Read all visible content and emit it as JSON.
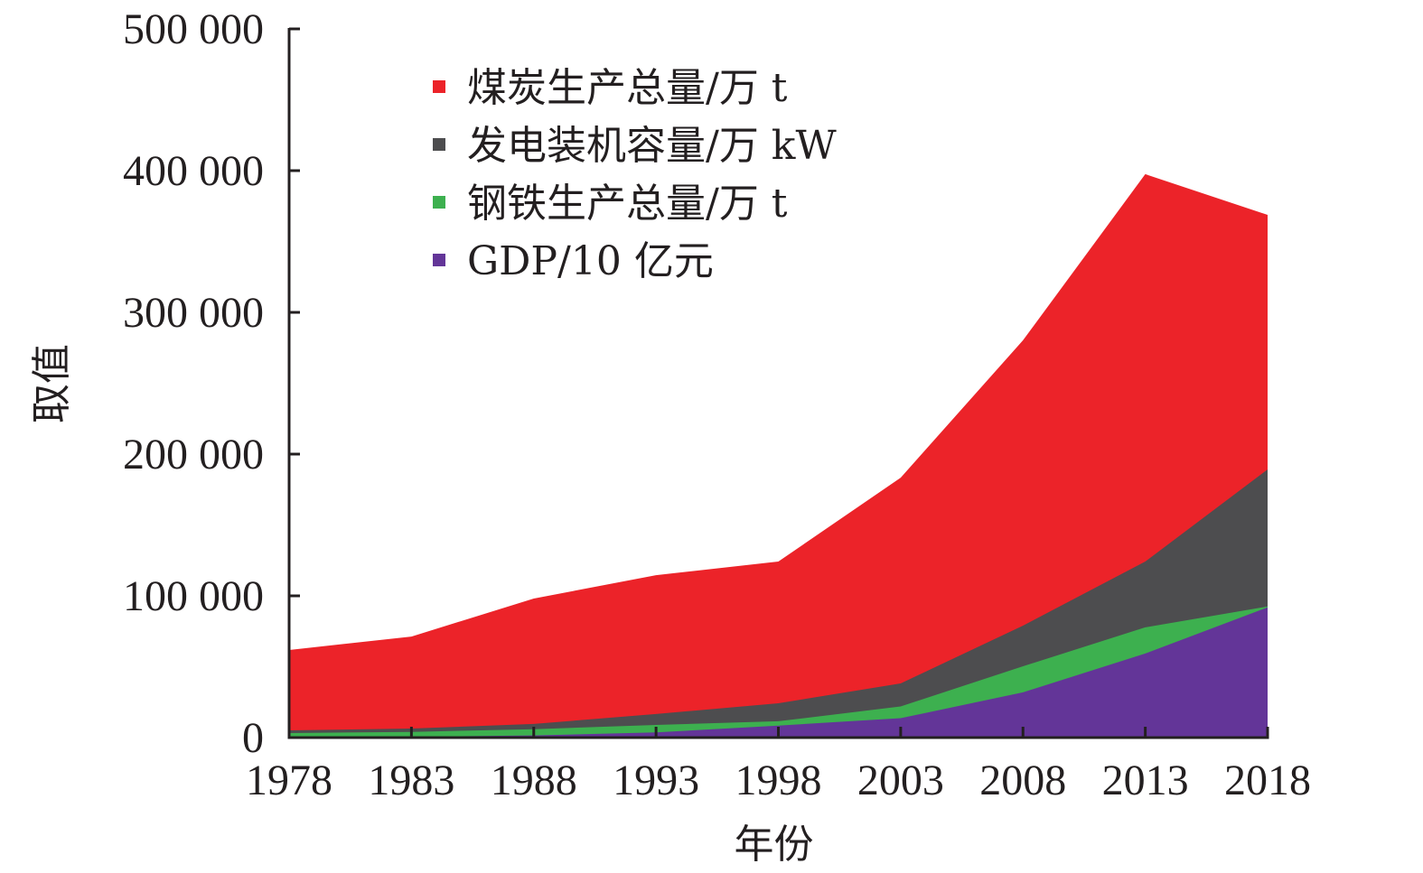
{
  "chart_data": {
    "type": "area",
    "stacked": false,
    "title": "",
    "xlabel": "年份",
    "ylabel": "取值",
    "categories": [
      "1978",
      "1983",
      "1988",
      "1993",
      "1998",
      "2003",
      "2008",
      "2013",
      "2018"
    ],
    "ylim": [
      0,
      500000
    ],
    "yticks": [
      0,
      100000,
      200000,
      300000,
      400000,
      500000
    ],
    "ytick_labels": [
      "0",
      "100 000",
      "200 000",
      "300 000",
      "400 000",
      "500 000"
    ],
    "grid": false,
    "legend_position": "top-left",
    "series": [
      {
        "name": "煤炭生产总量/万 t",
        "color": "#ec2329",
        "values": [
          61800,
          71300,
          98100,
          114600,
          124200,
          183400,
          280300,
          397500,
          368800
        ]
      },
      {
        "name": "发电装机容量/万 kW",
        "color": "#4d4d4f",
        "values": [
          5100,
          6400,
          9600,
          16600,
          24200,
          38200,
          79000,
          124200,
          189200
        ]
      },
      {
        "name": "钢铁生产总量/万 t",
        "color": "#3db04f",
        "values": [
          3200,
          4000,
          5900,
          8900,
          11500,
          22000,
          50300,
          77800,
          92500
        ]
      },
      {
        "name": "GDP/10 亿元",
        "color": "#633598",
        "values": [
          400,
          600,
          1500,
          3600,
          8500,
          13700,
          31900,
          59300,
          91900
        ]
      }
    ]
  }
}
